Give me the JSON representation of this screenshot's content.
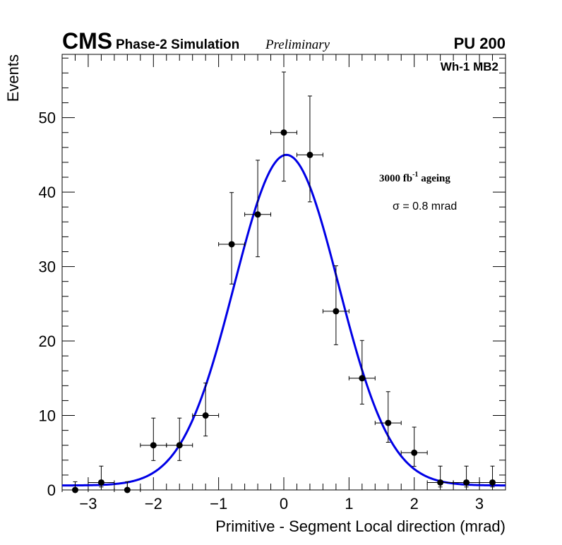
{
  "header": {
    "experiment": "CMS",
    "subtitle": "Phase-2 Simulation",
    "status": "Preliminary",
    "pileup": "PU 200"
  },
  "annotations": {
    "station": "Wh-1 MB2",
    "ageing_value": "3000 fb",
    "ageing_exp": "-1",
    "ageing_word": " ageing",
    "sigma_symbol": "σ",
    "sigma_text": " = 0.8 mrad"
  },
  "colors": {
    "fit": "#0000e6",
    "points": "#000000",
    "axes": "#000000"
  },
  "chart_data": {
    "type": "scatter",
    "title": "CMS Phase-2 Simulation Preliminary",
    "xlabel": "Primitive - Segment Local direction (mrad)",
    "ylabel": "Events",
    "xlim": [
      -3.4,
      3.4
    ],
    "ylim": [
      0,
      58.5
    ],
    "x_ticks": [
      -3,
      -2,
      -1,
      0,
      1,
      2,
      3
    ],
    "x_tick_labels": [
      "−3",
      "−2",
      "−1",
      "0",
      "1",
      "2",
      "3"
    ],
    "y_ticks": [
      0,
      10,
      20,
      30,
      40,
      50
    ],
    "y_tick_labels": [
      "0",
      "10",
      "20",
      "30",
      "40",
      "50"
    ],
    "bin_width": 0.4,
    "series": [
      {
        "name": "Simulation",
        "x": [
          -3.2,
          -2.8,
          -2.4,
          -2.0,
          -1.6,
          -1.2,
          -0.8,
          -0.4,
          0.0,
          0.4,
          0.8,
          1.2,
          1.6,
          2.0,
          2.4,
          2.8,
          3.2
        ],
        "y": [
          0,
          1,
          0,
          6,
          6,
          10,
          33,
          37,
          48,
          45,
          24,
          15,
          9,
          5,
          1,
          1,
          1
        ]
      }
    ],
    "fit": {
      "name": "Gaussian fit",
      "function": "gaussian_plus_constant",
      "amplitude": 44.4,
      "mean": 0.04,
      "sigma": 0.8,
      "constant": 0.6
    }
  }
}
